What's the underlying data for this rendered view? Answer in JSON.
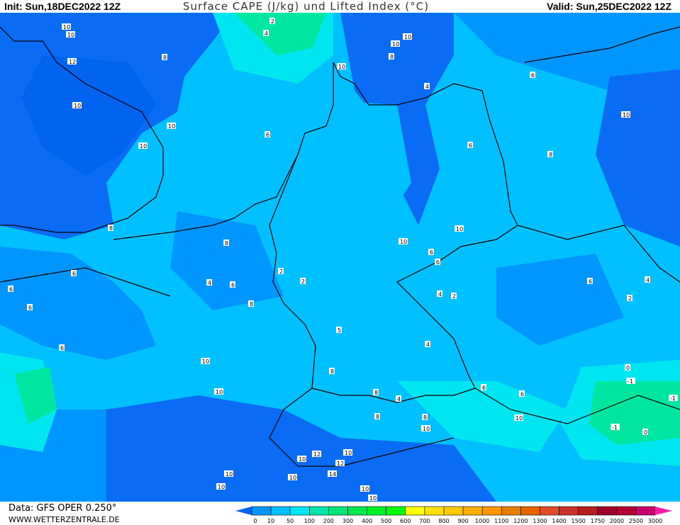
{
  "header": {
    "init": "Init: Sun,18DEC2022 12Z",
    "title": "Surface CAPE (J/kg) und Lifted Index (°C)",
    "valid": "Valid: Sun,25DEC2022 12Z"
  },
  "footer": {
    "data_source": "Data: GFS OPER 0.250°",
    "website": "WWW.WETTERZENTRALE.DE"
  },
  "colorbar": {
    "unit": "J/kg",
    "ticks": [
      "0",
      "10",
      "50",
      "100",
      "200",
      "300",
      "400",
      "500",
      "600",
      "700",
      "800",
      "900",
      "1000",
      "1100",
      "1200",
      "1300",
      "1400",
      "1500",
      "1750",
      "2000",
      "2500",
      "3000"
    ],
    "colors": [
      "#0096ff",
      "#00c0ff",
      "#00e6f0",
      "#00e6aa",
      "#00e678",
      "#00e650",
      "#00f028",
      "#00ff00",
      "#ffff00",
      "#ffe100",
      "#ffc800",
      "#ffaf00",
      "#ff9600",
      "#e67d00",
      "#e66400",
      "#e04b28",
      "#c83228",
      "#b41e1e",
      "#a00028",
      "#b40032",
      "#c8006e"
    ],
    "under_color": "#0064f0",
    "over_color": "#ff1eaa"
  },
  "map": {
    "region": "Central Europe / Germany",
    "field_colors": {
      "dark_blue": "#0a6cf5",
      "blue": "#0096ff",
      "light_blue": "#00c0ff",
      "cyan": "#00e6f0",
      "green": "#00e6a0"
    },
    "lifted_index_labels": [
      "10",
      "10",
      "12",
      "10",
      "10",
      "10",
      "8",
      "2",
      "4",
      "10",
      "10",
      "8",
      "10",
      "6",
      "4",
      "6",
      "6",
      "10",
      "8",
      "10",
      "10",
      "6",
      "6",
      "8",
      "2",
      "2",
      "4",
      "6",
      "8",
      "6",
      "6",
      "6",
      "5",
      "4",
      "4",
      "2",
      "8",
      "10",
      "6",
      "8",
      "6",
      "2",
      "4",
      "0",
      "-1",
      "-1",
      "-1",
      "0",
      "10",
      "10",
      "10",
      "10",
      "10",
      "12",
      "10",
      "14",
      "12",
      "10",
      "10",
      "8",
      "10",
      "8",
      "8",
      "4",
      "6",
      "6",
      "10"
    ]
  }
}
